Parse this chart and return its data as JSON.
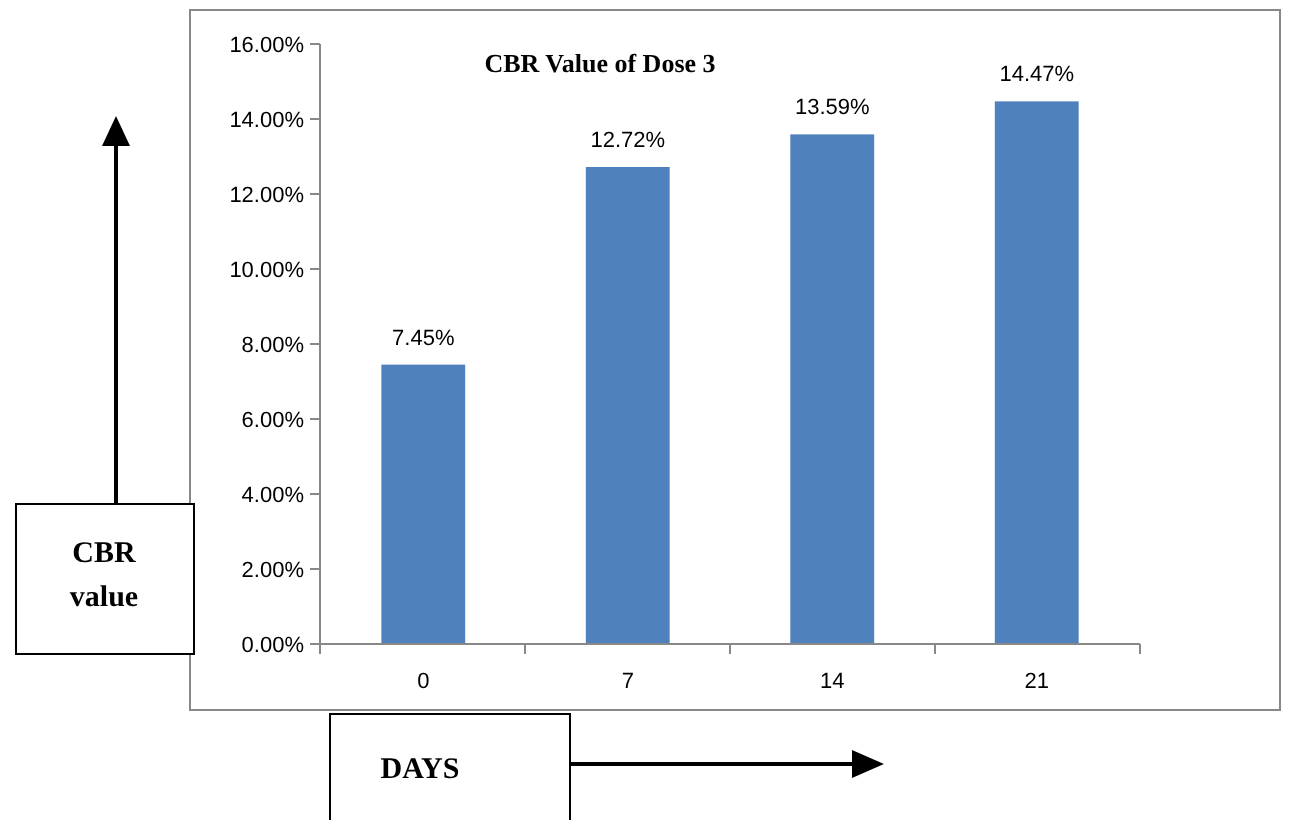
{
  "chart_data": {
    "type": "bar",
    "title": "CBR Value of Dose 3",
    "xlabel": "DAYS",
    "ylabel": "CBR value",
    "categories": [
      "0",
      "7",
      "14",
      "21"
    ],
    "values": [
      7.45,
      12.72,
      13.59,
      14.47
    ],
    "value_labels": [
      "7.45%",
      "12.72%",
      "13.59%",
      "14.47%"
    ],
    "color": "#4f81bd",
    "ylim": [
      0,
      16
    ],
    "yticks": [
      {
        "value": 0,
        "label": "0.00%"
      },
      {
        "value": 2,
        "label": "2.00%"
      },
      {
        "value": 4,
        "label": "4.00%"
      },
      {
        "value": 6,
        "label": "6.00%"
      },
      {
        "value": 8,
        "label": "8.00%"
      },
      {
        "value": 10,
        "label": "10.00%"
      },
      {
        "value": 12,
        "label": "12.00%"
      },
      {
        "value": 14,
        "label": "14.00%"
      },
      {
        "value": 16,
        "label": "16.00%"
      }
    ],
    "grid": false
  }
}
